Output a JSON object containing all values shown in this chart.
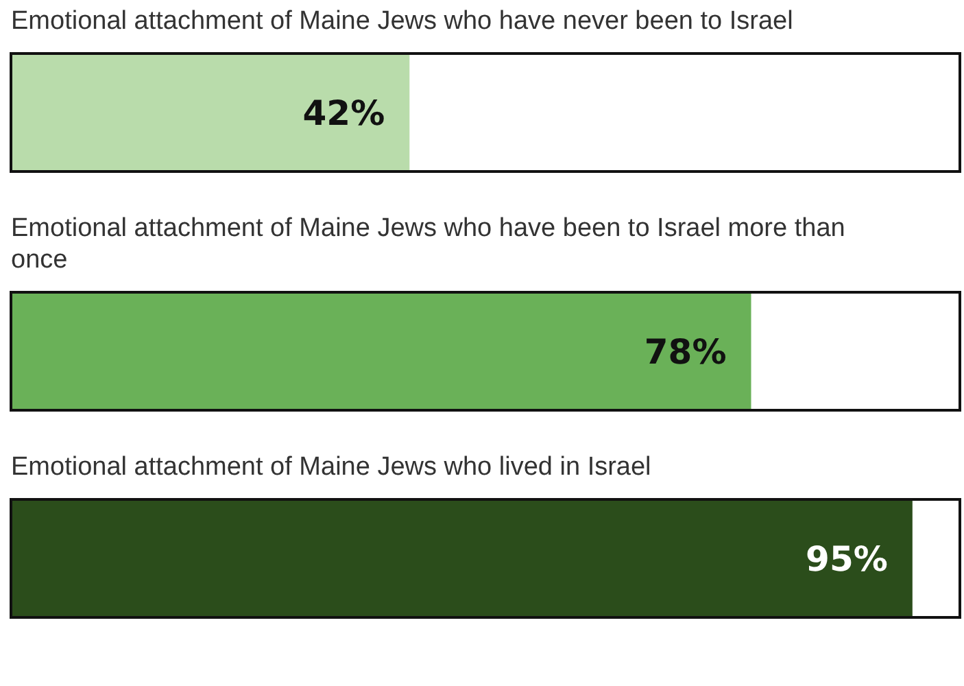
{
  "chart_data": {
    "type": "bar",
    "orientation": "horizontal",
    "categories": [
      "Emotional attachment of Maine Jews who have never been to Israel",
      "Emotional attachment of Maine Jews who have been to Israel more than once",
      "Emotional attachment of Maine Jews who lived in Israel"
    ],
    "values": [
      42,
      78,
      95
    ],
    "value_labels": [
      "42%",
      "78%",
      "95%"
    ],
    "colors": [
      "#b9dcab",
      "#6ab158",
      "#2b4d1b"
    ],
    "xlim": [
      0,
      100
    ],
    "tick_labels": false
  }
}
